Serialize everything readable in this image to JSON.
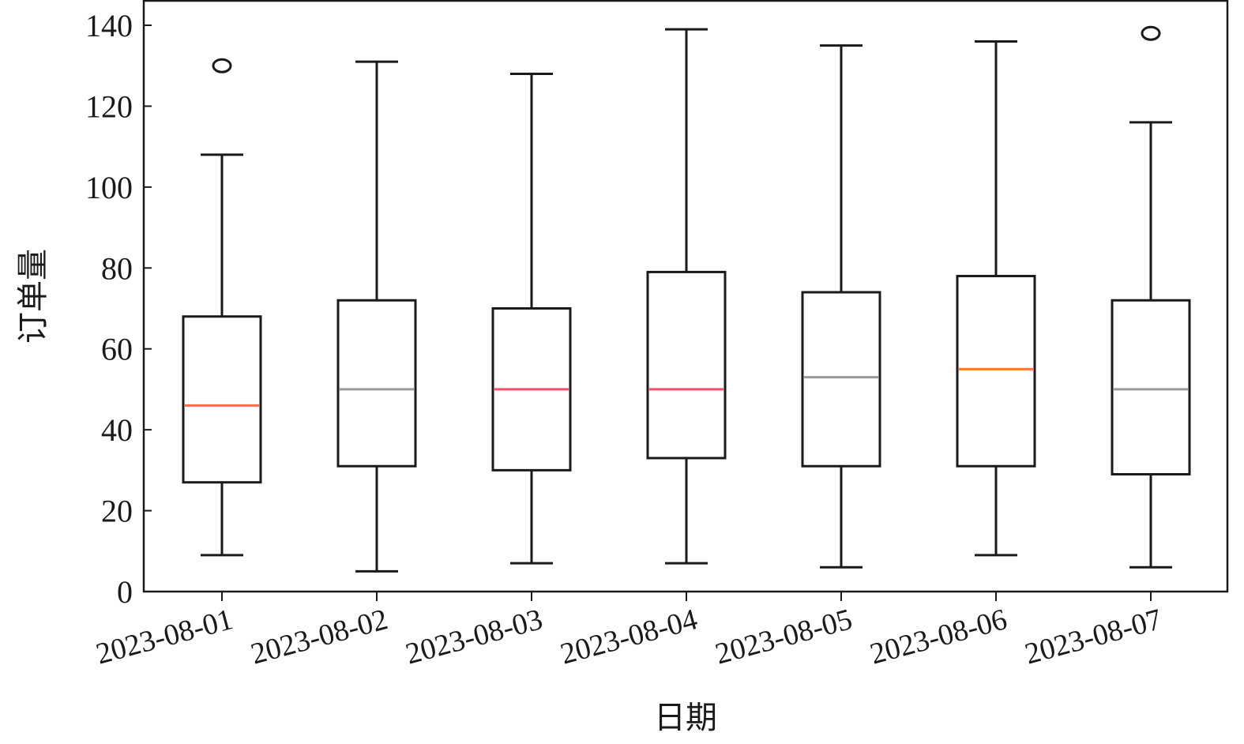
{
  "chart_data": {
    "type": "box",
    "title": "",
    "xlabel": "日期",
    "ylabel": "订单量",
    "ylim": [
      0,
      140
    ],
    "yticks": [
      0,
      20,
      40,
      60,
      80,
      100,
      120,
      140
    ],
    "ytick_labels": [
      "0",
      "20",
      "40",
      "60",
      "80",
      "100",
      "120",
      "140"
    ],
    "grid": false,
    "legend": "none",
    "categories": [
      "2023-08-01",
      "2023-08-02",
      "2023-08-03",
      "2023-08-04",
      "2023-08-05",
      "2023-08-06",
      "2023-08-07"
    ],
    "boxes": [
      {
        "whisker_low": 9,
        "q1": 27,
        "median": 46,
        "q3": 68,
        "whisker_high": 108,
        "outliers": [
          130
        ],
        "median_color": "#ff6a4d"
      },
      {
        "whisker_low": 5,
        "q1": 31,
        "median": 50,
        "q3": 72,
        "whisker_high": 131,
        "outliers": [],
        "median_color": "#999999"
      },
      {
        "whisker_low": 7,
        "q1": 30,
        "median": 50,
        "q3": 70,
        "whisker_high": 128,
        "outliers": [],
        "median_color": "#ff4d6a"
      },
      {
        "whisker_low": 7,
        "q1": 33,
        "median": 50,
        "q3": 79,
        "whisker_high": 139,
        "outliers": [],
        "median_color": "#ff4d6a"
      },
      {
        "whisker_low": 6,
        "q1": 31,
        "median": 53,
        "q3": 74,
        "whisker_high": 135,
        "outliers": [],
        "median_color": "#999999"
      },
      {
        "whisker_low": 9,
        "q1": 31,
        "median": 55,
        "q3": 78,
        "whisker_high": 136,
        "outliers": [],
        "median_color": "#ff7a2e"
      },
      {
        "whisker_low": 6,
        "q1": 29,
        "median": 50,
        "q3": 72,
        "whisker_high": 116,
        "outliers": [
          138
        ],
        "median_color": "#999999"
      }
    ]
  }
}
